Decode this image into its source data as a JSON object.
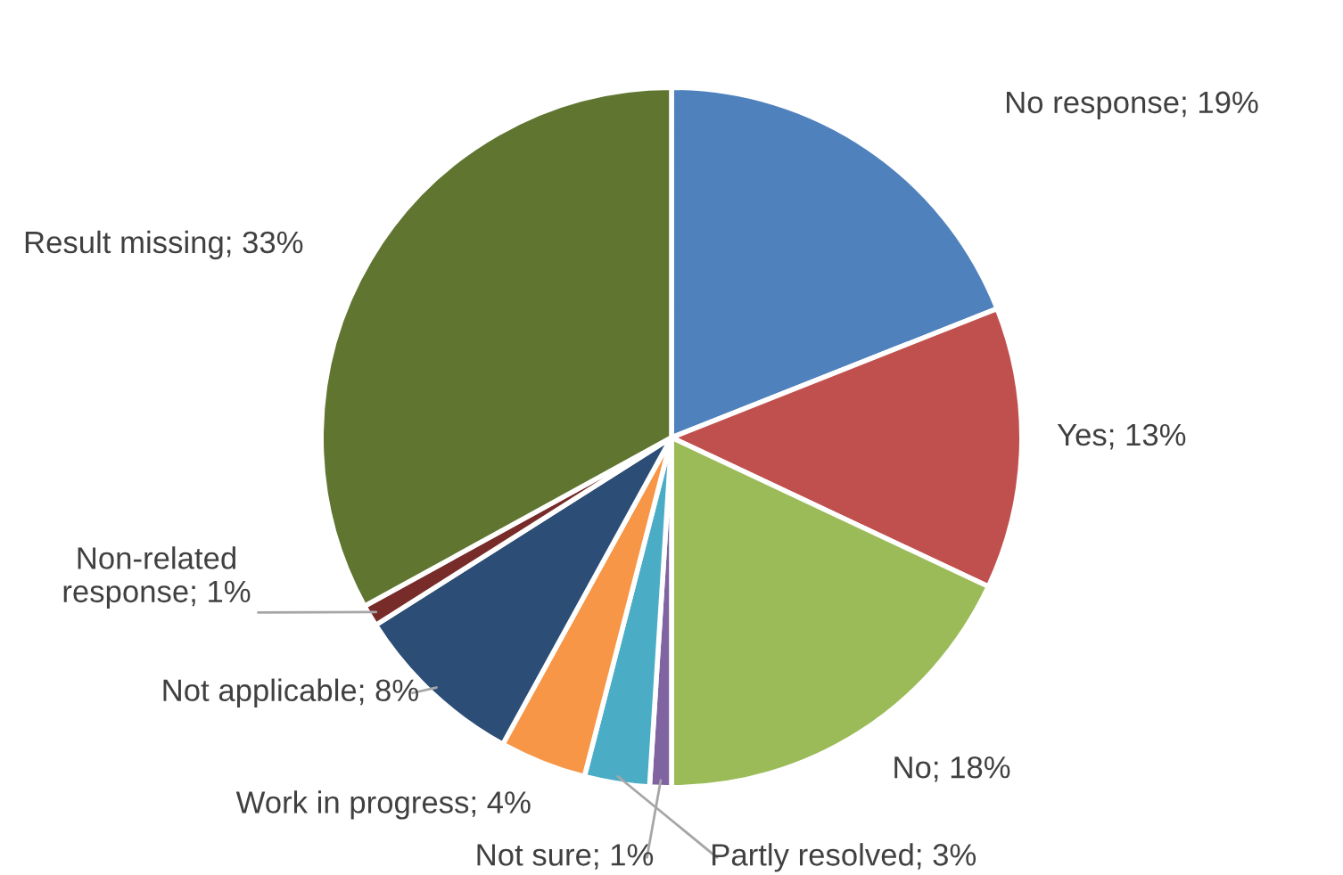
{
  "chart_data": {
    "type": "pie",
    "categories": [
      "No response",
      "Yes",
      "No",
      "Not sure",
      "Partly resolved",
      "Work in progress",
      "Not applicable",
      "Non-related response",
      "Result missing"
    ],
    "values": [
      19,
      13,
      18,
      1,
      3,
      4,
      8,
      1,
      33
    ],
    "value_labels": [
      "19%",
      "13%",
      "18%",
      "1%",
      "3%",
      "4%",
      "8%",
      "1%",
      "33%"
    ],
    "colors": [
      "#4f81bd",
      "#c0504d",
      "#9bbb59",
      "#8064a2",
      "#4bacc6",
      "#f79646",
      "#2c4d75",
      "#772c2a",
      "#5f7530"
    ],
    "legend": false
  }
}
